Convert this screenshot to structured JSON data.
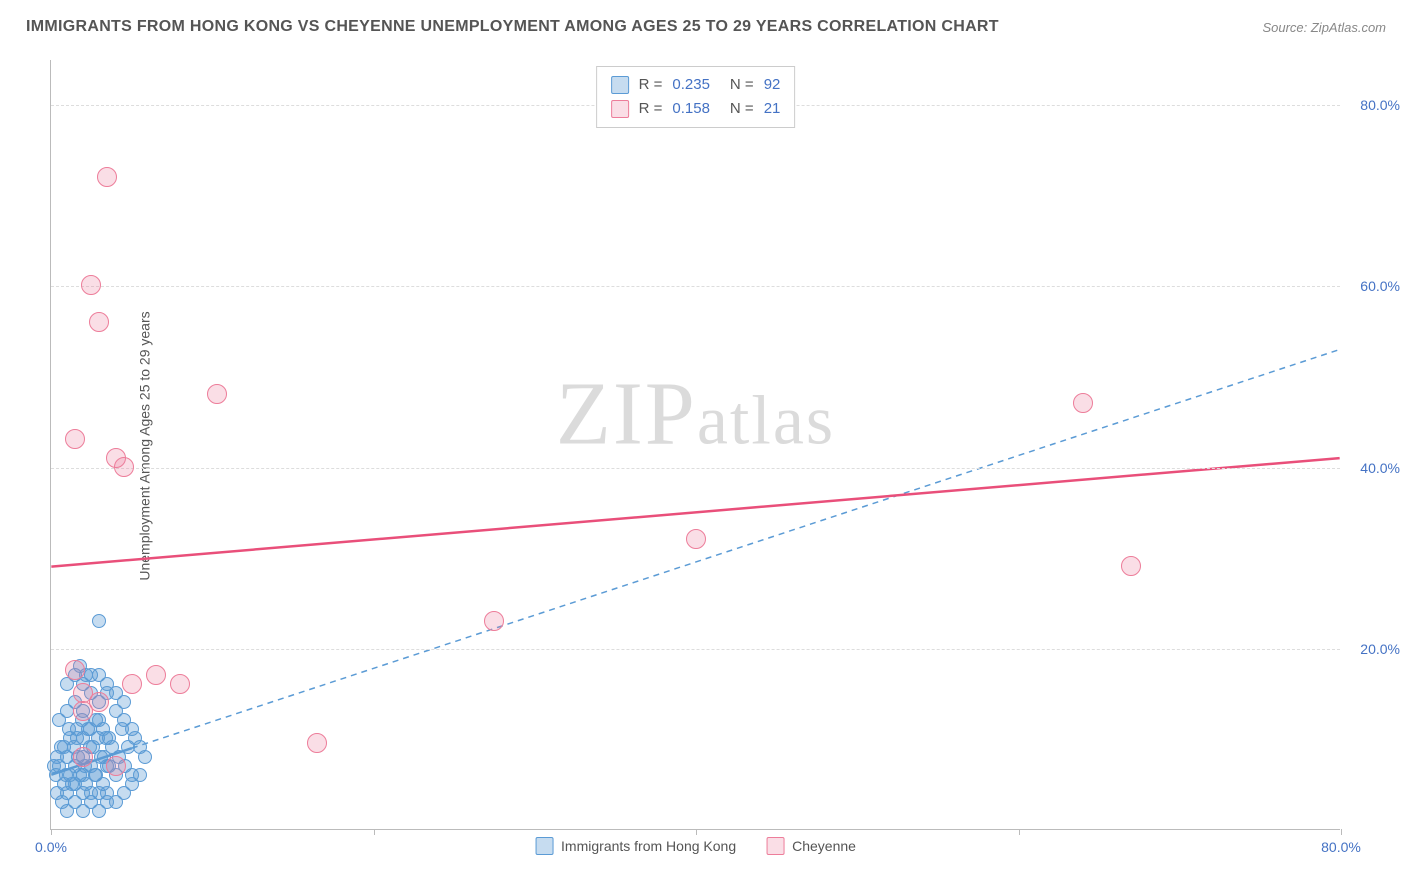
{
  "title": "IMMIGRANTS FROM HONG KONG VS CHEYENNE UNEMPLOYMENT AMONG AGES 25 TO 29 YEARS CORRELATION CHART",
  "source": "Source: ZipAtlas.com",
  "ylabel": "Unemployment Among Ages 25 to 29 years",
  "watermark_a": "ZIP",
  "watermark_b": "atlas",
  "chart": {
    "type": "scatter",
    "xlim": [
      0,
      80
    ],
    "ylim": [
      0,
      85
    ],
    "x_ticks": [
      0,
      20,
      40,
      60,
      80
    ],
    "x_tick_labels": [
      "0.0%",
      "",
      "",
      "",
      "80.0%"
    ],
    "y_ticks": [
      20,
      40,
      60,
      80
    ],
    "y_tick_labels": [
      "20.0%",
      "40.0%",
      "60.0%",
      "80.0%"
    ],
    "background_color": "#ffffff",
    "grid_color": "#dddddd",
    "axis_color": "#bbbbbb",
    "tick_label_color": "#4472c4",
    "label_color": "#555555",
    "title_color": "#555555",
    "title_fontsize": 16,
    "label_fontsize": 14,
    "tick_fontsize": 14,
    "marker_size_blue": 14,
    "marker_size_pink": 20,
    "series": [
      {
        "name": "Immigrants from Hong Kong",
        "key": "blue",
        "color_fill": "rgba(91,155,213,0.35)",
        "color_stroke": "#5b9bd5",
        "R": "0.235",
        "N": "92",
        "trend": {
          "x1": 0,
          "y1": 6,
          "x2": 80,
          "y2": 53,
          "stroke": "#5b9bd5",
          "dash": "6,5",
          "width": 1.5,
          "solid_until_x": 5
        },
        "points": [
          [
            0.3,
            6
          ],
          [
            0.5,
            7
          ],
          [
            0.8,
            5
          ],
          [
            1.0,
            8
          ],
          [
            1.2,
            6
          ],
          [
            1.4,
            9
          ],
          [
            1.5,
            7
          ],
          [
            1.6,
            10
          ],
          [
            1.8,
            6
          ],
          [
            2.0,
            8
          ],
          [
            2.2,
            5
          ],
          [
            2.3,
            11
          ],
          [
            2.5,
            7
          ],
          [
            2.6,
            9
          ],
          [
            2.8,
            6
          ],
          [
            3.0,
            12
          ],
          [
            3.1,
            8
          ],
          [
            3.2,
            5
          ],
          [
            3.4,
            10
          ],
          [
            3.5,
            7
          ],
          [
            0.4,
            4
          ],
          [
            0.6,
            9
          ],
          [
            0.9,
            6
          ],
          [
            1.1,
            11
          ],
          [
            1.3,
            5
          ],
          [
            1.7,
            8
          ],
          [
            1.9,
            12
          ],
          [
            2.1,
            7
          ],
          [
            2.4,
            9
          ],
          [
            2.7,
            6
          ],
          [
            2.9,
            10
          ],
          [
            3.3,
            8
          ],
          [
            3.6,
            7
          ],
          [
            3.8,
            9
          ],
          [
            4.0,
            6
          ],
          [
            4.2,
            8
          ],
          [
            4.4,
            11
          ],
          [
            4.6,
            7
          ],
          [
            4.8,
            9
          ],
          [
            5.0,
            6
          ],
          [
            0.7,
            3
          ],
          [
            1.0,
            4
          ],
          [
            1.5,
            3
          ],
          [
            2.0,
            4
          ],
          [
            2.5,
            3
          ],
          [
            3.0,
            4
          ],
          [
            3.5,
            3
          ],
          [
            0.5,
            12
          ],
          [
            1.0,
            13
          ],
          [
            1.5,
            14
          ],
          [
            2.0,
            13
          ],
          [
            2.5,
            15
          ],
          [
            3.0,
            14
          ],
          [
            3.5,
            15
          ],
          [
            4.0,
            13
          ],
          [
            4.5,
            12
          ],
          [
            5.0,
            11
          ],
          [
            5.2,
            10
          ],
          [
            5.5,
            9
          ],
          [
            5.8,
            8
          ],
          [
            0.2,
            7
          ],
          [
            0.4,
            8
          ],
          [
            0.8,
            9
          ],
          [
            1.2,
            10
          ],
          [
            1.6,
            11
          ],
          [
            2.0,
            10
          ],
          [
            2.4,
            11
          ],
          [
            2.8,
            12
          ],
          [
            3.2,
            11
          ],
          [
            3.6,
            10
          ],
          [
            1.0,
            16
          ],
          [
            1.5,
            17
          ],
          [
            2.0,
            16
          ],
          [
            2.5,
            17
          ],
          [
            1.8,
            18
          ],
          [
            2.2,
            17
          ],
          [
            3.0,
            17
          ],
          [
            3.5,
            16
          ],
          [
            4.0,
            15
          ],
          [
            4.5,
            14
          ],
          [
            3.0,
            23
          ],
          [
            1.0,
            2
          ],
          [
            2.0,
            2
          ],
          [
            3.0,
            2
          ],
          [
            4.0,
            3
          ],
          [
            4.5,
            4
          ],
          [
            5.0,
            5
          ],
          [
            5.5,
            6
          ],
          [
            1.5,
            5
          ],
          [
            2.0,
            6
          ],
          [
            2.5,
            4
          ],
          [
            3.5,
            4
          ]
        ]
      },
      {
        "name": "Cheyenne",
        "key": "pink",
        "color_fill": "rgba(237,125,154,0.25)",
        "color_stroke": "#ed7d9a",
        "R": "0.158",
        "N": "21",
        "trend": {
          "x1": 0,
          "y1": 29,
          "x2": 80,
          "y2": 41,
          "stroke": "#e94f7a",
          "dash": "none",
          "width": 2.5
        },
        "points": [
          [
            3.5,
            72
          ],
          [
            2.5,
            60
          ],
          [
            3.0,
            56
          ],
          [
            1.5,
            43
          ],
          [
            4.0,
            41
          ],
          [
            4.5,
            40
          ],
          [
            10.3,
            48
          ],
          [
            40.0,
            32
          ],
          [
            64.0,
            47
          ],
          [
            67.0,
            29
          ],
          [
            27.5,
            23
          ],
          [
            16.5,
            9.5
          ],
          [
            1.5,
            17.5
          ],
          [
            2.0,
            13
          ],
          [
            2.0,
            15
          ],
          [
            3.0,
            14
          ],
          [
            5.0,
            16
          ],
          [
            6.5,
            17
          ],
          [
            8.0,
            16
          ],
          [
            2.0,
            8
          ],
          [
            4.0,
            7
          ]
        ]
      }
    ],
    "legend_top": {
      "R_label": "R =",
      "N_label": "N ="
    },
    "legend_bottom": [
      {
        "key": "blue",
        "label": "Immigrants from Hong Kong"
      },
      {
        "key": "pink",
        "label": "Cheyenne"
      }
    ]
  }
}
